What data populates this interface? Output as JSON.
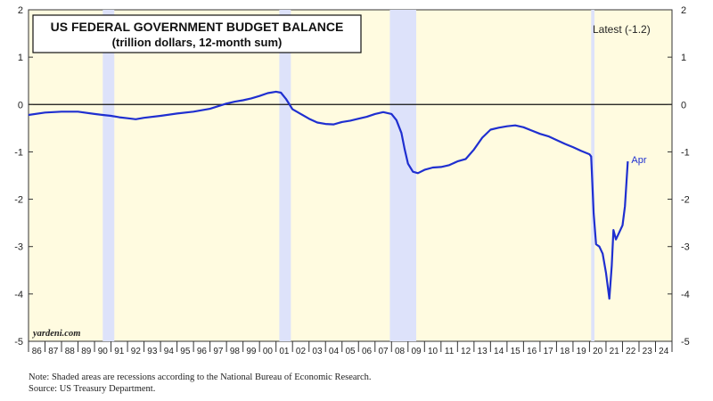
{
  "chart_data": {
    "type": "line",
    "title": "US FEDERAL GOVERNMENT BUDGET BALANCE",
    "subtitle": "(trillion dollars, 12-month sum)",
    "latest_label": "Latest (-1.2)",
    "end_label": "Apr",
    "watermark": "yardeni.com",
    "ylim": [
      -5,
      2
    ],
    "y_ticks": [
      2,
      1,
      0,
      -1,
      -2,
      -3,
      -4,
      -5
    ],
    "x_range": [
      1986,
      2025
    ],
    "x_tick_labels": [
      "86",
      "87",
      "88",
      "89",
      "90",
      "91",
      "92",
      "93",
      "94",
      "95",
      "96",
      "97",
      "98",
      "99",
      "00",
      "01",
      "02",
      "03",
      "04",
      "05",
      "06",
      "07",
      "08",
      "09",
      "10",
      "11",
      "12",
      "13",
      "14",
      "15",
      "16",
      "17",
      "18",
      "19",
      "20",
      "21",
      "22",
      "23",
      "24"
    ],
    "recessions": [
      [
        1990.5,
        1991.2
      ],
      [
        2001.2,
        2001.9
      ],
      [
        2007.9,
        2009.5
      ],
      [
        2020.1,
        2020.3
      ]
    ],
    "series": [
      {
        "color": "#1f2fd0",
        "points": [
          [
            1986.0,
            -0.22
          ],
          [
            1987.0,
            -0.17
          ],
          [
            1988.0,
            -0.15
          ],
          [
            1989.0,
            -0.15
          ],
          [
            1990.0,
            -0.2
          ],
          [
            1990.5,
            -0.22
          ],
          [
            1991.0,
            -0.24
          ],
          [
            1991.5,
            -0.27
          ],
          [
            1992.0,
            -0.29
          ],
          [
            1992.5,
            -0.31
          ],
          [
            1993.0,
            -0.28
          ],
          [
            1994.0,
            -0.24
          ],
          [
            1995.0,
            -0.19
          ],
          [
            1996.0,
            -0.15
          ],
          [
            1997.0,
            -0.09
          ],
          [
            1998.0,
            0.02
          ],
          [
            1998.5,
            0.06
          ],
          [
            1999.0,
            0.09
          ],
          [
            1999.5,
            0.13
          ],
          [
            2000.0,
            0.18
          ],
          [
            2000.5,
            0.24
          ],
          [
            2001.0,
            0.27
          ],
          [
            2001.3,
            0.25
          ],
          [
            2001.6,
            0.12
          ],
          [
            2002.0,
            -0.1
          ],
          [
            2002.5,
            -0.2
          ],
          [
            2003.0,
            -0.3
          ],
          [
            2003.5,
            -0.38
          ],
          [
            2004.0,
            -0.41
          ],
          [
            2004.5,
            -0.42
          ],
          [
            2005.0,
            -0.37
          ],
          [
            2005.5,
            -0.34
          ],
          [
            2006.0,
            -0.3
          ],
          [
            2006.5,
            -0.26
          ],
          [
            2007.0,
            -0.2
          ],
          [
            2007.5,
            -0.16
          ],
          [
            2008.0,
            -0.2
          ],
          [
            2008.3,
            -0.33
          ],
          [
            2008.6,
            -0.6
          ],
          [
            2008.8,
            -0.95
          ],
          [
            2009.0,
            -1.25
          ],
          [
            2009.3,
            -1.42
          ],
          [
            2009.6,
            -1.45
          ],
          [
            2010.0,
            -1.38
          ],
          [
            2010.5,
            -1.33
          ],
          [
            2011.0,
            -1.32
          ],
          [
            2011.5,
            -1.28
          ],
          [
            2012.0,
            -1.2
          ],
          [
            2012.5,
            -1.15
          ],
          [
            2013.0,
            -0.95
          ],
          [
            2013.5,
            -0.7
          ],
          [
            2014.0,
            -0.53
          ],
          [
            2014.5,
            -0.49
          ],
          [
            2015.0,
            -0.46
          ],
          [
            2015.5,
            -0.44
          ],
          [
            2016.0,
            -0.48
          ],
          [
            2016.5,
            -0.55
          ],
          [
            2017.0,
            -0.62
          ],
          [
            2017.5,
            -0.67
          ],
          [
            2018.0,
            -0.75
          ],
          [
            2018.5,
            -0.83
          ],
          [
            2019.0,
            -0.9
          ],
          [
            2019.5,
            -0.98
          ],
          [
            2020.0,
            -1.05
          ],
          [
            2020.1,
            -1.1
          ],
          [
            2020.25,
            -2.3
          ],
          [
            2020.4,
            -2.95
          ],
          [
            2020.6,
            -3.0
          ],
          [
            2020.8,
            -3.15
          ],
          [
            2021.0,
            -3.55
          ],
          [
            2021.2,
            -4.1
          ],
          [
            2021.35,
            -3.4
          ],
          [
            2021.45,
            -2.65
          ],
          [
            2021.6,
            -2.85
          ],
          [
            2021.8,
            -2.7
          ],
          [
            2022.0,
            -2.55
          ],
          [
            2022.15,
            -2.15
          ],
          [
            2022.32,
            -1.2
          ]
        ]
      }
    ]
  },
  "notes": {
    "line1": "Note: Shaded areas are recessions according to the National Bureau of Economic Research.",
    "line2": "Source: US Treasury Department."
  }
}
